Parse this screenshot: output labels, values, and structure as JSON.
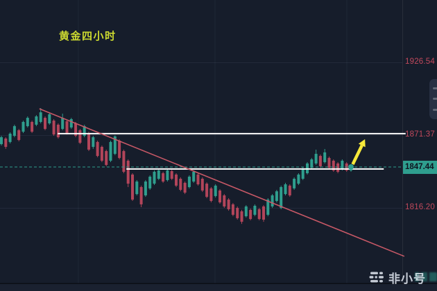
{
  "chart": {
    "title": "黄金四小时"
  },
  "watermark": {
    "text": "非小号",
    "logo": "feixiaohao-logo"
  },
  "chart_data": {
    "type": "candlestick",
    "title": "黄金四小时",
    "instrument": "黄金 (Gold)",
    "timeframe": "4小时",
    "ylim": [
      1779,
      1931
    ],
    "grid": "on",
    "price_axis": {
      "tick_labels": [
        {
          "text": "1926.54",
          "price": 1926.54
        },
        {
          "text": "1871.37",
          "price": 1871.37
        },
        {
          "text": "1816.20",
          "price": 1816.2
        }
      ],
      "last_price": {
        "text": "1847.44",
        "price": 1847.44
      }
    },
    "candles": [
      [
        1864.8,
        1871.1,
        1863.7,
        1870.0
      ],
      [
        1869.0,
        1870.0,
        1861.2,
        1862.7
      ],
      [
        1866.4,
        1873.7,
        1865.3,
        1872.7
      ],
      [
        1871.1,
        1879.5,
        1870.0,
        1878.4
      ],
      [
        1875.3,
        1876.3,
        1866.9,
        1867.9
      ],
      [
        1874.2,
        1882.6,
        1873.2,
        1881.6
      ],
      [
        1878.4,
        1885.8,
        1877.4,
        1884.7
      ],
      [
        1881.6,
        1882.6,
        1873.2,
        1874.2
      ],
      [
        1879.5,
        1886.8,
        1878.4,
        1885.8
      ],
      [
        1881.6,
        1892.1,
        1880.5,
        1888.9
      ],
      [
        1884.7,
        1885.8,
        1875.3,
        1876.3
      ],
      [
        1880.5,
        1888.4,
        1879.5,
        1887.4
      ],
      [
        1882.6,
        1883.7,
        1871.1,
        1872.1
      ],
      [
        1879.5,
        1880.5,
        1869.0,
        1870.0
      ],
      [
        1876.3,
        1887.9,
        1875.3,
        1884.7
      ],
      [
        1882.1,
        1883.1,
        1872.1,
        1873.2
      ],
      [
        1877.4,
        1884.7,
        1876.3,
        1883.7
      ],
      [
        1880.5,
        1881.6,
        1870.0,
        1871.1
      ],
      [
        1875.3,
        1876.3,
        1864.8,
        1865.8
      ],
      [
        1871.1,
        1879.5,
        1870.0,
        1878.4
      ],
      [
        1873.2,
        1874.2,
        1859.5,
        1860.6
      ],
      [
        1862.7,
        1871.1,
        1861.2,
        1870.0
      ],
      [
        1866.4,
        1867.4,
        1854.8,
        1855.8
      ],
      [
        1862.7,
        1863.7,
        1851.1,
        1852.2
      ],
      [
        1859.5,
        1860.6,
        1848.0,
        1849.0
      ],
      [
        1852.2,
        1867.4,
        1851.1,
        1866.4
      ],
      [
        1857.4,
        1871.4,
        1856.4,
        1870.6
      ],
      [
        1867.4,
        1868.4,
        1853.2,
        1854.3
      ],
      [
        1859.5,
        1860.6,
        1842.7,
        1843.8
      ],
      [
        1852.2,
        1853.2,
        1832.2,
        1834.8
      ],
      [
        1841.7,
        1842.7,
        1821.7,
        1822.7
      ],
      [
        1826.9,
        1837.5,
        1825.9,
        1836.4
      ],
      [
        1832.2,
        1833.3,
        1817.0,
        1819.1
      ],
      [
        1825.9,
        1837.5,
        1824.8,
        1836.4
      ],
      [
        1831.2,
        1841.1,
        1830.1,
        1840.1
      ],
      [
        1834.8,
        1844.8,
        1833.8,
        1843.8
      ],
      [
        1838.5,
        1845.9,
        1837.5,
        1844.8
      ],
      [
        1842.7,
        1843.8,
        1835.4,
        1836.4
      ],
      [
        1837.5,
        1845.9,
        1836.4,
        1844.8
      ],
      [
        1844.3,
        1845.3,
        1837.5,
        1838.5
      ],
      [
        1841.7,
        1842.7,
        1832.2,
        1833.3
      ],
      [
        1838.5,
        1839.6,
        1829.0,
        1830.1
      ],
      [
        1835.4,
        1836.4,
        1826.9,
        1828.0
      ],
      [
        1832.2,
        1841.1,
        1831.2,
        1840.1
      ],
      [
        1836.4,
        1844.8,
        1835.4,
        1843.8
      ],
      [
        1841.7,
        1842.7,
        1833.3,
        1834.3
      ],
      [
        1838.5,
        1839.6,
        1828.5,
        1829.6
      ],
      [
        1834.8,
        1835.8,
        1823.8,
        1824.8
      ],
      [
        1831.2,
        1832.2,
        1820.6,
        1821.7
      ],
      [
        1825.4,
        1834.3,
        1824.3,
        1833.3
      ],
      [
        1829.6,
        1830.6,
        1819.6,
        1820.6
      ],
      [
        1825.9,
        1826.9,
        1816.4,
        1817.5
      ],
      [
        1822.7,
        1823.8,
        1814.3,
        1815.4
      ],
      [
        1819.1,
        1820.1,
        1810.1,
        1811.2
      ],
      [
        1816.4,
        1817.5,
        1807.5,
        1808.6
      ],
      [
        1813.8,
        1814.9,
        1804.3,
        1805.9
      ],
      [
        1810.1,
        1818.5,
        1809.1,
        1817.5
      ],
      [
        1814.9,
        1815.9,
        1807.0,
        1808.0
      ],
      [
        1811.2,
        1819.1,
        1810.1,
        1818.0
      ],
      [
        1815.4,
        1816.4,
        1807.0,
        1808.0
      ],
      [
        1817.5,
        1818.5,
        1805.9,
        1807.5
      ],
      [
        1811.2,
        1823.8,
        1810.1,
        1822.7
      ],
      [
        1817.5,
        1826.9,
        1816.4,
        1825.9
      ],
      [
        1821.7,
        1830.1,
        1820.6,
        1829.0
      ],
      [
        1816.4,
        1833.3,
        1815.4,
        1832.2
      ],
      [
        1826.9,
        1835.4,
        1825.9,
        1834.3
      ],
      [
        1833.3,
        1834.3,
        1824.8,
        1825.9
      ],
      [
        1831.2,
        1839.6,
        1830.1,
        1838.5
      ],
      [
        1834.8,
        1842.7,
        1833.8,
        1841.7
      ],
      [
        1838.5,
        1847.4,
        1837.5,
        1846.4
      ],
      [
        1842.7,
        1851.1,
        1841.7,
        1850.1
      ],
      [
        1846.9,
        1854.3,
        1845.9,
        1853.2
      ],
      [
        1850.1,
        1860.6,
        1849.0,
        1857.4
      ],
      [
        1855.8,
        1856.9,
        1846.9,
        1848.0
      ],
      [
        1851.1,
        1861.1,
        1850.1,
        1858.5
      ],
      [
        1854.3,
        1855.3,
        1845.9,
        1846.9
      ],
      [
        1852.2,
        1853.2,
        1843.8,
        1844.8
      ],
      [
        1850.1,
        1851.1,
        1842.7,
        1843.8
      ],
      [
        1845.9,
        1853.2,
        1844.8,
        1852.2
      ],
      [
        1850.1,
        1851.1,
        1843.8,
        1844.8
      ],
      [
        1844.8,
        1848.5,
        1843.8,
        1847.44
      ]
    ],
    "annotations": {
      "last_price_line": {
        "price": 1847.44,
        "style": "dashed"
      },
      "resistance_line": {
        "price": 1872.7,
        "from_index": 12.9,
        "to_index": 92.5
      },
      "support_line": {
        "price": 1845.9,
        "from_index": 28.6,
        "to_index": 87.5
      },
      "trendline": {
        "from": {
          "index": 8.7,
          "price": 1891.6
        },
        "to": {
          "index": 92.2,
          "price": 1779.7
        }
      },
      "arrow": {
        "from": {
          "index": 80.4,
          "price": 1849.5
        },
        "to": {
          "index": 83.2,
          "price": 1868.5
        }
      },
      "dot_marker": {
        "index": 80,
        "price": 1847.44
      }
    },
    "colors": {
      "background": "#161d2b",
      "up": "#2f9e8e",
      "down": "#b2455a",
      "trendline": "#c75866",
      "axis_label": "#c2495c",
      "badge_bg": "#2f9e8e",
      "badge_text": "#0e1420",
      "title": "#ccd930",
      "arrow": "#f7e93a",
      "watermark": "#dfe5ee"
    }
  }
}
